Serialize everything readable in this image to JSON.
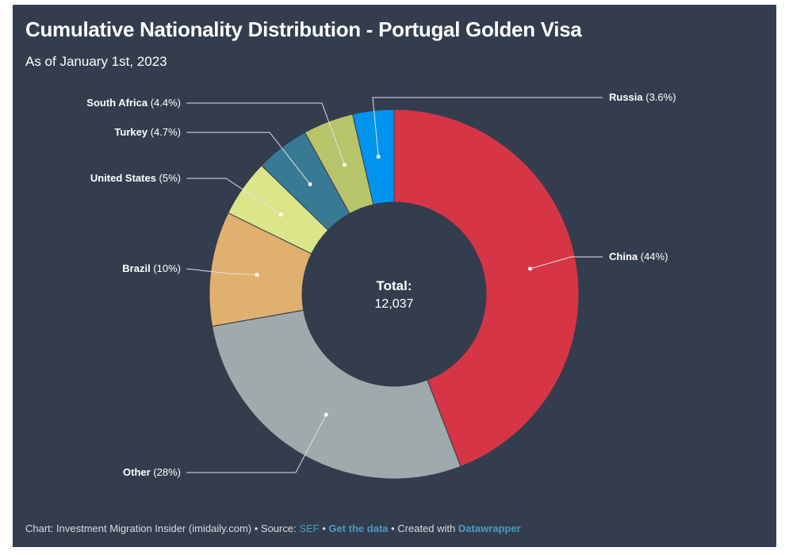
{
  "title": "Cumulative Nationality Distribution - Portugal Golden Visa",
  "subtitle": "As of January 1st, 2023",
  "center": {
    "label": "Total:",
    "value": "12,037"
  },
  "footer": {
    "prefix": "Chart: Investment Migration Insider (imidaily.com) • Source: ",
    "source_link": "SEF",
    "sep": " • ",
    "data_link": "Get the data",
    "created": " • Created with ",
    "tool_link": "Datawrapper"
  },
  "chart_data": {
    "type": "pie",
    "donut": true,
    "title": "Cumulative Nationality Distribution - Portugal Golden Visa",
    "slices": [
      {
        "name": "China",
        "value": 44,
        "label": "(44%)",
        "color": "#d63545"
      },
      {
        "name": "Other",
        "value": 28,
        "label": "(28%)",
        "color": "#9eaaab"
      },
      {
        "name": "Brazil",
        "value": 10,
        "label": "(10%)",
        "color": "#e0b06e"
      },
      {
        "name": "United States",
        "value": 5,
        "label": "(5%)",
        "color": "#dbe68a"
      },
      {
        "name": "Turkey",
        "value": 4.7,
        "label": "(4.7%)",
        "color": "#387a93"
      },
      {
        "name": "South Africa",
        "value": 4.4,
        "label": "(4.4%)",
        "color": "#b8c46a"
      },
      {
        "name": "Russia",
        "value": 3.6,
        "label": "(3.6%)",
        "color": "#0094ee"
      }
    ]
  }
}
